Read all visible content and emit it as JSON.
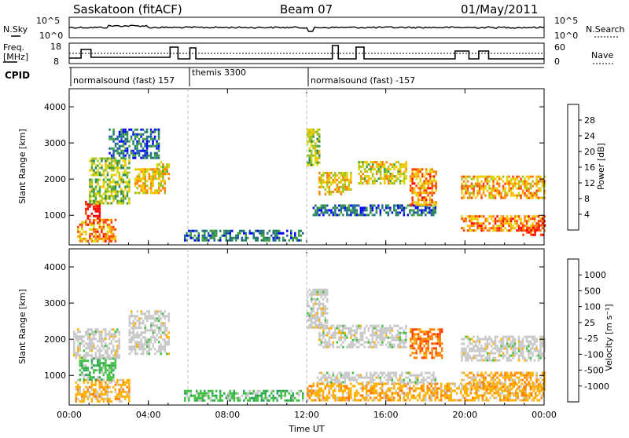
{
  "header": {
    "station": "Saskatoon (fitACF)",
    "beam": "Beam 07",
    "date": "01/May/2011"
  },
  "status_panels": {
    "nsky_label": "N.Sky",
    "nsky_ticks": [
      "10^5",
      "10^0"
    ],
    "nsearch_label": "N.Search",
    "nsearch_ticks": [
      "10^5",
      "10^0"
    ],
    "freq_label_line1": "Freq.",
    "freq_label_line2": "[MHz]",
    "freq_ticks": [
      "18",
      "8"
    ],
    "nave_label": "Nave",
    "nave_ticks": [
      "60",
      "0"
    ],
    "cpid_label": "CPID",
    "cpid_segments": [
      {
        "label": "normalsound (fast) 157",
        "start_hour": 0,
        "end_hour": 6
      },
      {
        "label": "themis 3300",
        "start_hour": 6,
        "end_hour": 12
      },
      {
        "label": "normalsound (fast) -157",
        "start_hour": 12,
        "end_hour": 24
      }
    ]
  },
  "chart_data": [
    {
      "type": "heatmap",
      "name": "power",
      "ylabel": "Slant Range [km]",
      "ylim": [
        180,
        4500
      ],
      "yticks": [
        "1000",
        "2000",
        "3000",
        "4000"
      ],
      "xlim": [
        0,
        24
      ],
      "colorbar": {
        "label": "Power [dB]",
        "ticks": [
          "28",
          "24",
          "20",
          "16",
          "12",
          "8",
          "4"
        ],
        "colors": [
          "#ff0000",
          "#ff4000",
          "#ff8000",
          "#ffc000",
          "#d8d800",
          "#a0c020",
          "#40a040",
          "#208060",
          "#2060a0",
          "#0000ff"
        ]
      },
      "regions": [
        {
          "x": [
            0.4,
            2.3
          ],
          "y": [
            300,
            900
          ],
          "level": 22
        },
        {
          "x": [
            0.8,
            1.5
          ],
          "y": [
            800,
            1400
          ],
          "level": 28
        },
        {
          "x": [
            1.0,
            3.0
          ],
          "y": [
            1300,
            2600
          ],
          "level": 14
        },
        {
          "x": [
            2.0,
            4.5
          ],
          "y": [
            2600,
            3400
          ],
          "level": 6
        },
        {
          "x": [
            3.3,
            4.8
          ],
          "y": [
            1600,
            2300
          ],
          "level": 18
        },
        {
          "x": [
            4.3,
            5.0
          ],
          "y": [
            2000,
            2500
          ],
          "level": 16
        },
        {
          "x": [
            5.8,
            11.8
          ],
          "y": [
            300,
            600
          ],
          "level": 6
        },
        {
          "x": [
            12.0,
            12.6
          ],
          "y": [
            2400,
            3400
          ],
          "level": 14
        },
        {
          "x": [
            12.6,
            14.2
          ],
          "y": [
            1600,
            2200
          ],
          "level": 18
        },
        {
          "x": [
            14.6,
            17.0
          ],
          "y": [
            1900,
            2500
          ],
          "level": 16
        },
        {
          "x": [
            12.3,
            18.5
          ],
          "y": [
            1000,
            1300
          ],
          "level": 6
        },
        {
          "x": [
            17.2,
            18.5
          ],
          "y": [
            1300,
            2300
          ],
          "level": 22
        },
        {
          "x": [
            19.8,
            24.0
          ],
          "y": [
            1500,
            2100
          ],
          "level": 20
        },
        {
          "x": [
            19.8,
            24.0
          ],
          "y": [
            600,
            1000
          ],
          "level": 22
        },
        {
          "x": [
            22.8,
            24.0
          ],
          "y": [
            450,
            750
          ],
          "level": 28
        }
      ]
    },
    {
      "type": "heatmap",
      "name": "velocity",
      "ylabel": "Slant Range [km]",
      "xlabel": "Time UT",
      "ylim": [
        180,
        4500
      ],
      "yticks": [
        "1000",
        "2000",
        "3000",
        "4000"
      ],
      "xlim": [
        0,
        24
      ],
      "xticks": [
        "00:00",
        "04:00",
        "08:00",
        "12:00",
        "16:00",
        "20:00",
        "00:00"
      ],
      "colorbar": {
        "label": "Velocity [m s⁻¹]",
        "ticks": [
          "1000",
          "500",
          "100",
          "25",
          "-25",
          "-100",
          "-500",
          "-1000"
        ],
        "colors": [
          "#2040c0",
          "#2070a0",
          "#30a060",
          "#40c040",
          "#c8c8c8",
          "#ffb000",
          "#ff8000",
          "#ff4000",
          "#ff0000"
        ]
      },
      "regions": [
        {
          "x": [
            0.3,
            3.0
          ],
          "y": [
            300,
            900
          ],
          "level": -100
        },
        {
          "x": [
            0.5,
            2.3
          ],
          "y": [
            900,
            1500
          ],
          "level": 100
        },
        {
          "x": [
            0.2,
            2.5
          ],
          "y": [
            1500,
            2300
          ],
          "level": 0
        },
        {
          "x": [
            3.0,
            5.0
          ],
          "y": [
            1600,
            2800
          ],
          "level": 0
        },
        {
          "x": [
            5.8,
            11.8
          ],
          "y": [
            300,
            600
          ],
          "level": 100
        },
        {
          "x": [
            12.0,
            24.0
          ],
          "y": [
            300,
            800
          ],
          "level": -100
        },
        {
          "x": [
            12.0,
            13.0
          ],
          "y": [
            2300,
            3400
          ],
          "level": 0
        },
        {
          "x": [
            12.6,
            17.0
          ],
          "y": [
            1800,
            2400
          ],
          "level": 0
        },
        {
          "x": [
            17.2,
            18.8
          ],
          "y": [
            1500,
            2300
          ],
          "level": -500
        },
        {
          "x": [
            12.5,
            18.5
          ],
          "y": [
            800,
            1100
          ],
          "level": 0
        },
        {
          "x": [
            19.8,
            24.0
          ],
          "y": [
            1400,
            2100
          ],
          "level": 0
        },
        {
          "x": [
            19.8,
            24.0
          ],
          "y": [
            600,
            1100
          ],
          "level": -100
        }
      ]
    }
  ]
}
